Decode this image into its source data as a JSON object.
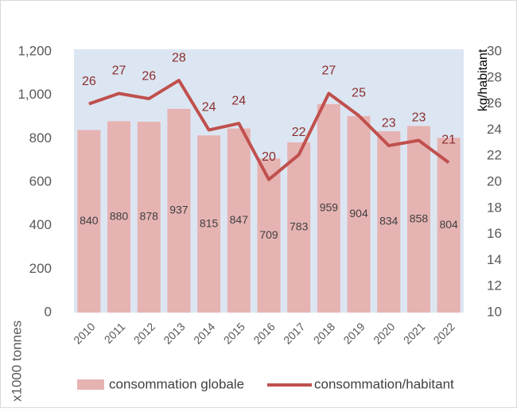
{
  "chart_data": {
    "type": "bar_line",
    "categories": [
      "2010",
      "2011",
      "2012",
      "2013",
      "2014",
      "2015",
      "2016",
      "2017",
      "2018",
      "2019",
      "2020",
      "2021",
      "2022"
    ],
    "series": [
      {
        "name": "consommation globale",
        "color": "#e6b3b3",
        "values": [
          840,
          880,
          878,
          937,
          815,
          847,
          709,
          783,
          959,
          904,
          834,
          858,
          804
        ]
      },
      {
        "name": "consommation/habitant",
        "color": "#c0504d",
        "axis": "y2",
        "values": [
          26.0,
          26.8,
          26.4,
          27.8,
          24.0,
          24.5,
          20.2,
          22.1,
          26.8,
          25.1,
          22.8,
          23.2,
          21.5
        ],
        "value_labels": [
          "26",
          "27",
          "26",
          "28",
          "24",
          "24",
          "20",
          "22",
          "27",
          "25",
          "23",
          "23",
          "21"
        ]
      }
    ],
    "ylabel": "x1000 tonnes",
    "y2label": "kg/habitant",
    "ylim": [
      0,
      1200
    ],
    "yticks": [
      0,
      200,
      400,
      600,
      800,
      {
        "value": 1000,
        "label": "1,000"
      },
      {
        "value": 1200,
        "label": "1,200"
      }
    ],
    "y2lim": [
      10,
      30
    ],
    "y2ticks": [
      10,
      12,
      14,
      16,
      18,
      20,
      22,
      24,
      26,
      28,
      30
    ],
    "legend": "bottom"
  }
}
